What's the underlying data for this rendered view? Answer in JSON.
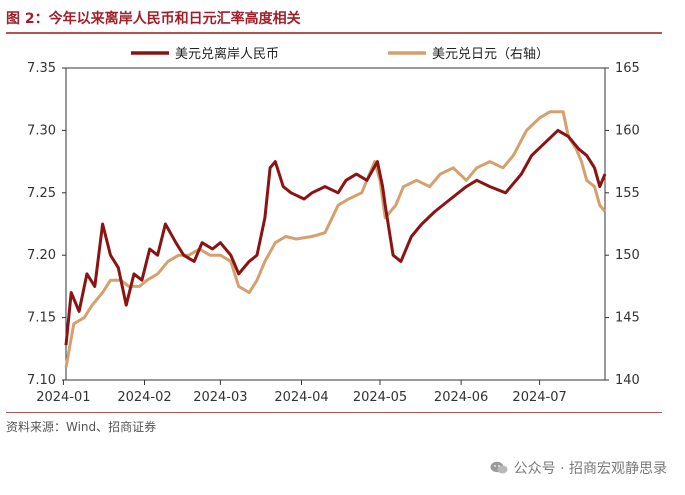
{
  "title": "图 2：今年以来离岸人民币和日元汇率高度相关",
  "source": "资料来源：Wind、招商证券",
  "watermark": "公众号 · 招商宏观静思录",
  "chart_data": {
    "type": "line",
    "title": "",
    "xlabel": "",
    "ylabel": "",
    "x_ticks": [
      "2024-01",
      "2024-02",
      "2024-03",
      "2024-04",
      "2024-05",
      "2024-06",
      "2024-07"
    ],
    "y_left": {
      "lim": [
        7.1,
        7.35
      ],
      "ticks": [
        "7.10",
        "7.15",
        "7.20",
        "7.25",
        "7.30",
        "7.35"
      ]
    },
    "y_right": {
      "lim": [
        140,
        165
      ],
      "ticks": [
        "140",
        "145",
        "150",
        "155",
        "160",
        "165"
      ]
    },
    "legend_position": "top",
    "x_start": "2024-01-02",
    "x_end": "2024-07-26",
    "series": [
      {
        "name": "美元兑离岸人民币",
        "axis": "left",
        "color": "#8b1313",
        "x": [
          "2024-01-02",
          "2024-01-04",
          "2024-01-07",
          "2024-01-10",
          "2024-01-13",
          "2024-01-16",
          "2024-01-19",
          "2024-01-22",
          "2024-01-25",
          "2024-01-28",
          "2024-01-31",
          "2024-02-03",
          "2024-02-06",
          "2024-02-09",
          "2024-02-13",
          "2024-02-16",
          "2024-02-20",
          "2024-02-23",
          "2024-02-27",
          "2024-03-01",
          "2024-03-05",
          "2024-03-08",
          "2024-03-12",
          "2024-03-15",
          "2024-03-18",
          "2024-03-20",
          "2024-03-22",
          "2024-03-25",
          "2024-03-28",
          "2024-04-02",
          "2024-04-05",
          "2024-04-10",
          "2024-04-15",
          "2024-04-18",
          "2024-04-22",
          "2024-04-26",
          "2024-04-30",
          "2024-05-02",
          "2024-05-03",
          "2024-05-06",
          "2024-05-09",
          "2024-05-13",
          "2024-05-17",
          "2024-05-22",
          "2024-05-28",
          "2024-06-03",
          "2024-06-07",
          "2024-06-12",
          "2024-06-18",
          "2024-06-24",
          "2024-06-28",
          "2024-07-03",
          "2024-07-08",
          "2024-07-12",
          "2024-07-16",
          "2024-07-19",
          "2024-07-22",
          "2024-07-24",
          "2024-07-26"
        ],
        "values": [
          7.128,
          7.17,
          7.155,
          7.185,
          7.175,
          7.225,
          7.2,
          7.19,
          7.16,
          7.185,
          7.18,
          7.205,
          7.2,
          7.225,
          7.21,
          7.2,
          7.195,
          7.21,
          7.205,
          7.21,
          7.2,
          7.185,
          7.195,
          7.2,
          7.23,
          7.27,
          7.275,
          7.255,
          7.25,
          7.245,
          7.25,
          7.255,
          7.25,
          7.26,
          7.265,
          7.26,
          7.275,
          7.255,
          7.24,
          7.2,
          7.195,
          7.215,
          7.225,
          7.235,
          7.245,
          7.255,
          7.26,
          7.255,
          7.25,
          7.265,
          7.28,
          7.29,
          7.3,
          7.295,
          7.285,
          7.28,
          7.27,
          7.255,
          7.265
        ]
      },
      {
        "name": "美元兑日元（右轴）",
        "axis": "right",
        "color": "#d6a06e",
        "x": [
          "2024-01-02",
          "2024-01-05",
          "2024-01-09",
          "2024-01-12",
          "2024-01-16",
          "2024-01-19",
          "2024-01-23",
          "2024-01-26",
          "2024-01-30",
          "2024-02-02",
          "2024-02-06",
          "2024-02-10",
          "2024-02-14",
          "2024-02-18",
          "2024-02-22",
          "2024-02-26",
          "2024-03-01",
          "2024-03-05",
          "2024-03-08",
          "2024-03-12",
          "2024-03-15",
          "2024-03-18",
          "2024-03-22",
          "2024-03-26",
          "2024-03-30",
          "2024-04-05",
          "2024-04-10",
          "2024-04-15",
          "2024-04-19",
          "2024-04-24",
          "2024-04-29",
          "2024-05-01",
          "2024-05-03",
          "2024-05-07",
          "2024-05-10",
          "2024-05-15",
          "2024-05-20",
          "2024-05-24",
          "2024-05-29",
          "2024-06-03",
          "2024-06-07",
          "2024-06-12",
          "2024-06-17",
          "2024-06-21",
          "2024-06-26",
          "2024-07-01",
          "2024-07-05",
          "2024-07-10",
          "2024-07-12",
          "2024-07-15",
          "2024-07-17",
          "2024-07-19",
          "2024-07-22",
          "2024-07-24",
          "2024-07-26"
        ],
        "values": [
          141.0,
          144.5,
          145.0,
          146.0,
          147.0,
          148.0,
          148.0,
          147.5,
          147.5,
          148.0,
          148.5,
          149.5,
          150.0,
          150.0,
          150.5,
          150.0,
          150.0,
          149.5,
          147.5,
          147.0,
          148.0,
          149.5,
          151.0,
          151.5,
          151.3,
          151.5,
          151.8,
          154.0,
          154.5,
          155.0,
          157.5,
          156.0,
          153.0,
          154.0,
          155.5,
          156.0,
          155.5,
          156.5,
          157.0,
          156.0,
          157.0,
          157.5,
          157.0,
          158.0,
          160.0,
          161.0,
          161.5,
          161.5,
          159.5,
          158.5,
          157.5,
          156.0,
          155.5,
          154.0,
          153.5
        ]
      }
    ]
  }
}
